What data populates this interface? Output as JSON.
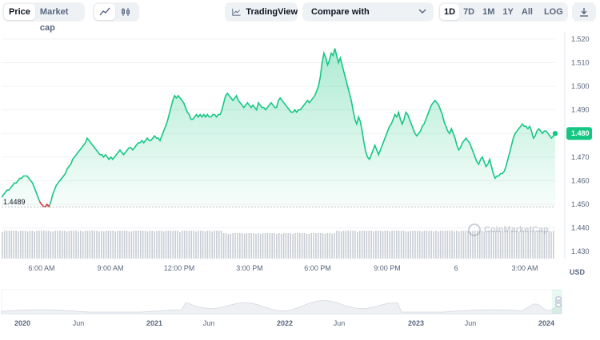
{
  "toolbar": {
    "type_tabs": [
      {
        "label": "Price",
        "active": true
      },
      {
        "label": "Market cap",
        "active": false
      }
    ],
    "chart_type_icons": [
      "line-chart-icon",
      "candlestick-icon"
    ],
    "tradingview_label": "TradingView",
    "compare_label": "Compare with",
    "ranges": [
      {
        "label": "1D",
        "active": true
      },
      {
        "label": "7D",
        "active": false
      },
      {
        "label": "1M",
        "active": false
      },
      {
        "label": "1Y",
        "active": false
      },
      {
        "label": "All",
        "active": false
      }
    ],
    "log_label": "LOG",
    "download_icon": "download-icon"
  },
  "colors": {
    "accent": "#16c784",
    "low": "#ea3943",
    "grid": "#eff2f5",
    "volume": "#c9cdd4"
  },
  "currency_label": "USD",
  "watermark_text": "CoinMarketCap",
  "chart_data": {
    "type": "line",
    "y_ticks": [
      "1.520",
      "1.510",
      "1.500",
      "1.490",
      "1.480",
      "1.470",
      "1.460",
      "1.450",
      "1.440",
      "1.430"
    ],
    "ylim": [
      1.427,
      1.523
    ],
    "x_ticks": [
      "6:00 AM",
      "9:00 AM",
      "12:00 PM",
      "3:00 PM",
      "6:00 PM",
      "9:00 PM",
      "6",
      "3:00 AM"
    ],
    "current_price": "1.480",
    "low_label": "1.4489",
    "values": [
      1.453,
      1.454,
      1.455,
      1.456,
      1.456,
      1.457,
      1.458,
      1.459,
      1.459,
      1.46,
      1.461,
      1.461,
      1.462,
      1.462,
      1.462,
      1.461,
      1.46,
      1.459,
      1.457,
      1.455,
      1.453,
      1.451,
      1.45,
      1.449,
      1.449,
      1.45,
      1.449,
      1.451,
      1.454,
      1.456,
      1.458,
      1.459,
      1.46,
      1.461,
      1.462,
      1.463,
      1.465,
      1.466,
      1.467,
      1.469,
      1.47,
      1.471,
      1.472,
      1.473,
      1.474,
      1.475,
      1.476,
      1.478,
      1.477,
      1.476,
      1.475,
      1.474,
      1.473,
      1.472,
      1.471,
      1.471,
      1.47,
      1.471,
      1.47,
      1.469,
      1.47,
      1.469,
      1.47,
      1.471,
      1.472,
      1.473,
      1.472,
      1.471,
      1.472,
      1.473,
      1.474,
      1.474,
      1.473,
      1.474,
      1.475,
      1.476,
      1.476,
      1.477,
      1.476,
      1.477,
      1.478,
      1.477,
      1.477,
      1.478,
      1.479,
      1.478,
      1.478,
      1.477,
      1.479,
      1.481,
      1.483,
      1.485,
      1.488,
      1.491,
      1.494,
      1.496,
      1.495,
      1.496,
      1.495,
      1.494,
      1.493,
      1.491,
      1.489,
      1.488,
      1.486,
      1.486,
      1.487,
      1.488,
      1.487,
      1.488,
      1.487,
      1.488,
      1.487,
      1.488,
      1.487,
      1.487,
      1.488,
      1.488,
      1.487,
      1.488,
      1.488,
      1.49,
      1.493,
      1.496,
      1.497,
      1.496,
      1.495,
      1.494,
      1.495,
      1.496,
      1.494,
      1.493,
      1.492,
      1.491,
      1.492,
      1.493,
      1.492,
      1.491,
      1.492,
      1.491,
      1.49,
      1.493,
      1.492,
      1.491,
      1.491,
      1.49,
      1.491,
      1.492,
      1.493,
      1.492,
      1.491,
      1.491,
      1.494,
      1.495,
      1.494,
      1.493,
      1.492,
      1.491,
      1.49,
      1.489,
      1.489,
      1.49,
      1.489,
      1.49,
      1.49,
      1.491,
      1.492,
      1.493,
      1.494,
      1.493,
      1.494,
      1.495,
      1.496,
      1.498,
      1.5,
      1.504,
      1.51,
      1.514,
      1.512,
      1.509,
      1.511,
      1.514,
      1.513,
      1.516,
      1.513,
      1.51,
      1.512,
      1.509,
      1.506,
      1.503,
      1.5,
      1.497,
      1.494,
      1.49,
      1.486,
      1.484,
      1.487,
      1.485,
      1.481,
      1.476,
      1.472,
      1.47,
      1.469,
      1.471,
      1.473,
      1.475,
      1.473,
      1.471,
      1.473,
      1.475,
      1.477,
      1.479,
      1.481,
      1.483,
      1.484,
      1.486,
      1.488,
      1.487,
      1.489,
      1.486,
      1.484,
      1.486,
      1.489,
      1.488,
      1.486,
      1.484,
      1.482,
      1.48,
      1.479,
      1.48,
      1.481,
      1.483,
      1.484,
      1.486,
      1.488,
      1.49,
      1.492,
      1.493,
      1.494,
      1.493,
      1.492,
      1.49,
      1.488,
      1.485,
      1.483,
      1.481,
      1.48,
      1.482,
      1.48,
      1.478,
      1.475,
      1.473,
      1.474,
      1.476,
      1.477,
      1.478,
      1.477,
      1.476,
      1.474,
      1.472,
      1.47,
      1.468,
      1.467,
      1.469,
      1.47,
      1.468,
      1.466,
      1.467,
      1.469,
      1.466,
      1.463,
      1.461,
      1.462,
      1.462,
      1.463,
      1.463,
      1.464,
      1.466,
      1.469,
      1.472,
      1.475,
      1.478,
      1.48,
      1.481,
      1.482,
      1.483,
      1.484,
      1.483,
      1.483,
      1.482,
      1.483,
      1.481,
      1.478,
      1.479,
      1.481,
      1.482,
      1.481,
      1.48,
      1.481,
      1.481,
      1.48,
      1.479,
      1.478,
      1.479,
      1.48
    ]
  },
  "navigator": {
    "labels": [
      {
        "text": "2020",
        "major": true
      },
      {
        "text": "Jun",
        "major": false
      },
      {
        "text": "2021",
        "major": true
      },
      {
        "text": "Jun",
        "major": false
      },
      {
        "text": "2022",
        "major": true
      },
      {
        "text": "Jun",
        "major": false
      },
      {
        "text": "2023",
        "major": true
      },
      {
        "text": "Jun",
        "major": false
      },
      {
        "text": "2024",
        "major": true
      }
    ]
  }
}
